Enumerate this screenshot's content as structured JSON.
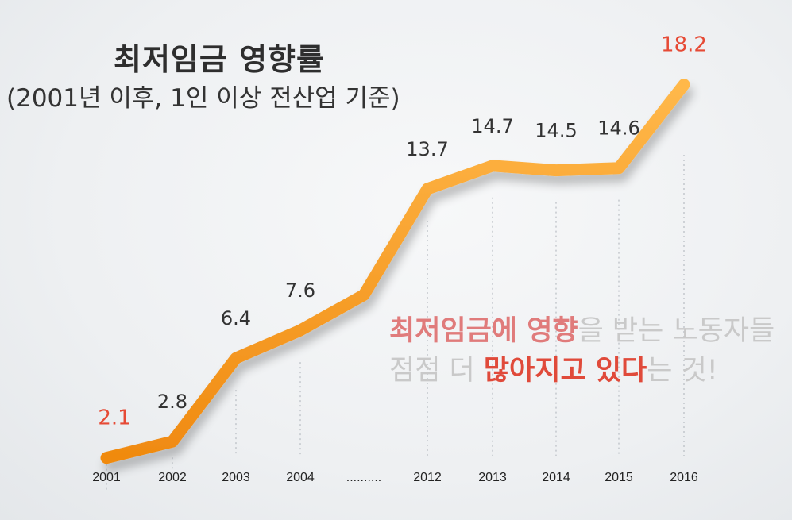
{
  "chart_data": {
    "type": "line",
    "title": "최저임금 영향률",
    "subtitle": "(2001년 이후, 1인 이상 전산업 기준)",
    "categories": [
      "2001",
      "2002",
      "2003",
      "2004",
      "..........",
      "2012",
      "2013",
      "2014",
      "2015",
      "2016"
    ],
    "series": [
      {
        "values": [
          2.1,
          2.8,
          6.4,
          7.6,
          null,
          13.7,
          14.7,
          14.5,
          14.6,
          18.2
        ]
      }
    ],
    "data_labels": [
      "2.1",
      "2.8",
      "6.4",
      "7.6",
      "",
      "13.7",
      "14.7",
      "14.5",
      "14.6",
      "18.2"
    ],
    "highlighted": [
      "2001",
      "2016"
    ],
    "grid": "dotted vertical",
    "colors": {
      "line": "#ff9a1f",
      "highlight": "#e64a35",
      "text": "#333333"
    }
  },
  "annotation": {
    "line1": [
      {
        "text": "최저임금에 ",
        "style": "pink"
      },
      {
        "text": "영향",
        "style": "pink"
      },
      {
        "text": "을 받는 노동자들",
        "style": "gray"
      }
    ],
    "line2": [
      {
        "text": "점점 더 ",
        "style": "gray"
      },
      {
        "text": "많아지고 있다",
        "style": "red"
      },
      {
        "text": "는 것!",
        "style": "gray"
      }
    ]
  }
}
